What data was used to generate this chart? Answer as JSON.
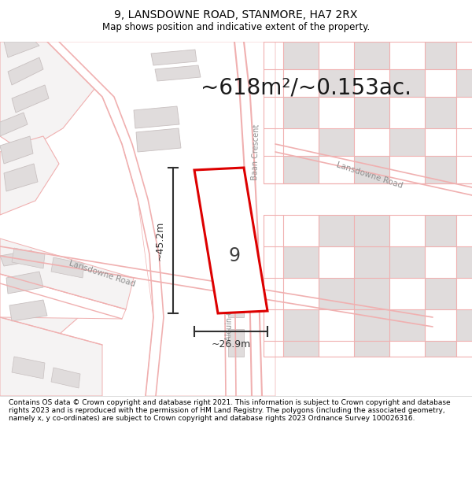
{
  "title": "9, LANSDOWNE ROAD, STANMORE, HA7 2RX",
  "subtitle": "Map shows position and indicative extent of the property.",
  "area_text": "~618m²/~0.153ac.",
  "width_label": "~26.9m",
  "height_label": "~45.2m",
  "property_number": "9",
  "footer_text": "Contains OS data © Crown copyright and database right 2021. This information is subject to Crown copyright and database rights 2023 and is reproduced with the permission of HM Land Registry. The polygons (including the associated geometry, namely x, y co-ordinates) are subject to Crown copyright and database rights 2023 Ordnance Survey 100026316.",
  "map_bg": "#ffffff",
  "road_outline": "#f0b0b0",
  "road_fill": "#f8f4f4",
  "building_fill": "#e0dcdc",
  "building_edge": "#c8c0c0",
  "property_color": "#dd0000",
  "dim_color": "#303030",
  "road_label_color": "#909090",
  "title_fs": 10,
  "subtitle_fs": 8.5,
  "area_fs": 20,
  "dim_fs": 9,
  "footer_fs": 6.5
}
